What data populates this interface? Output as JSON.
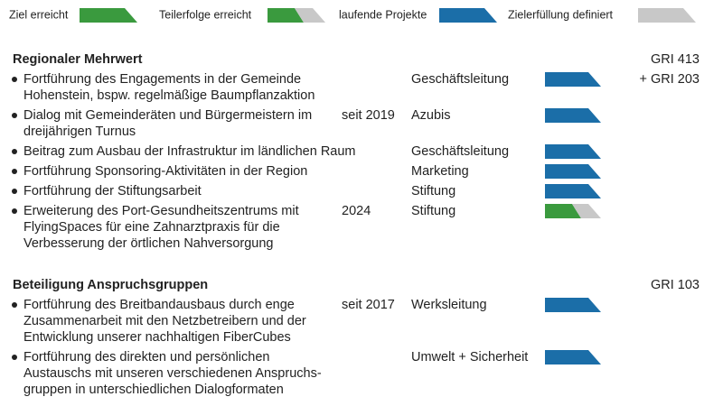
{
  "legend": [
    {
      "label": "Ziel erreicht",
      "fill": [
        "#3a9a3e"
      ]
    },
    {
      "label": "Teilerfolge erreicht",
      "fill": [
        "#3a9a3e",
        "#c8c8c8"
      ]
    },
    {
      "label": "laufende Projekte",
      "fill": [
        "#1b6ea8"
      ]
    },
    {
      "label": "Zielerfüllung definiert",
      "fill": [
        "#c8c8c8"
      ]
    }
  ],
  "sections": [
    {
      "title": "Regionaler Mehrwert",
      "gri": "GRI 413",
      "rows": [
        {
          "lines": [
            "Fortführung des Engagements in der Gemeinde",
            "Hohenstein, bspw. regelmäßige Baumpflanzaktion"
          ],
          "owner": "Geschäftsleitung",
          "note": "+ GRI 203",
          "fill": [
            "#1b6ea8"
          ]
        },
        {
          "lines": [
            "Dialog mit Gemeinderäten und Bürgermeistern im",
            "dreijährigen Turnus"
          ],
          "year": "seit 2019",
          "owner": "Azubis",
          "fill": [
            "#1b6ea8"
          ]
        },
        {
          "lines": [
            "Beitrag zum Ausbau der Infrastruktur im ländlichen Raum"
          ],
          "owner": "Geschäftsleitung",
          "fill": [
            "#1b6ea8"
          ]
        },
        {
          "lines": [
            "Fortführung Sponsoring-Aktivitäten in der Region"
          ],
          "owner": "Marketing",
          "fill": [
            "#1b6ea8"
          ]
        },
        {
          "lines": [
            "Fortführung der Stiftungsarbeit"
          ],
          "owner": "Stiftung",
          "fill": [
            "#1b6ea8"
          ]
        },
        {
          "lines": [
            "Erweiterung des Port-Gesundheitszentrums mit",
            "FlyingSpaces für eine Zahnarztpraxis für die",
            "Verbesserung der örtlichen Nahversorgung"
          ],
          "year": "2024",
          "owner": "Stiftung",
          "fill": [
            "#3a9a3e",
            "#c8c8c8"
          ]
        }
      ]
    },
    {
      "title": "Beteiligung Anspruchsgruppen",
      "gri": "GRI 103",
      "rows": [
        {
          "lines": [
            "Fortführung des Breitbandausbaus durch enge",
            "Zusammenarbeit mit den Netzbetreibern und der",
            "Entwicklung unserer nachhaltigen FiberCubes"
          ],
          "year": "seit 2017",
          "owner": "Werksleitung",
          "fill": [
            "#1b6ea8"
          ]
        },
        {
          "lines": [
            "Fortführung des direkten und persönlichen",
            "Austauschs mit unseren verschiedenen Anspruchs-",
            "gruppen in unterschiedlichen Dialogformaten"
          ],
          "owner": "Umwelt + Sicherheit",
          "fill": [
            "#1b6ea8"
          ]
        }
      ]
    }
  ]
}
